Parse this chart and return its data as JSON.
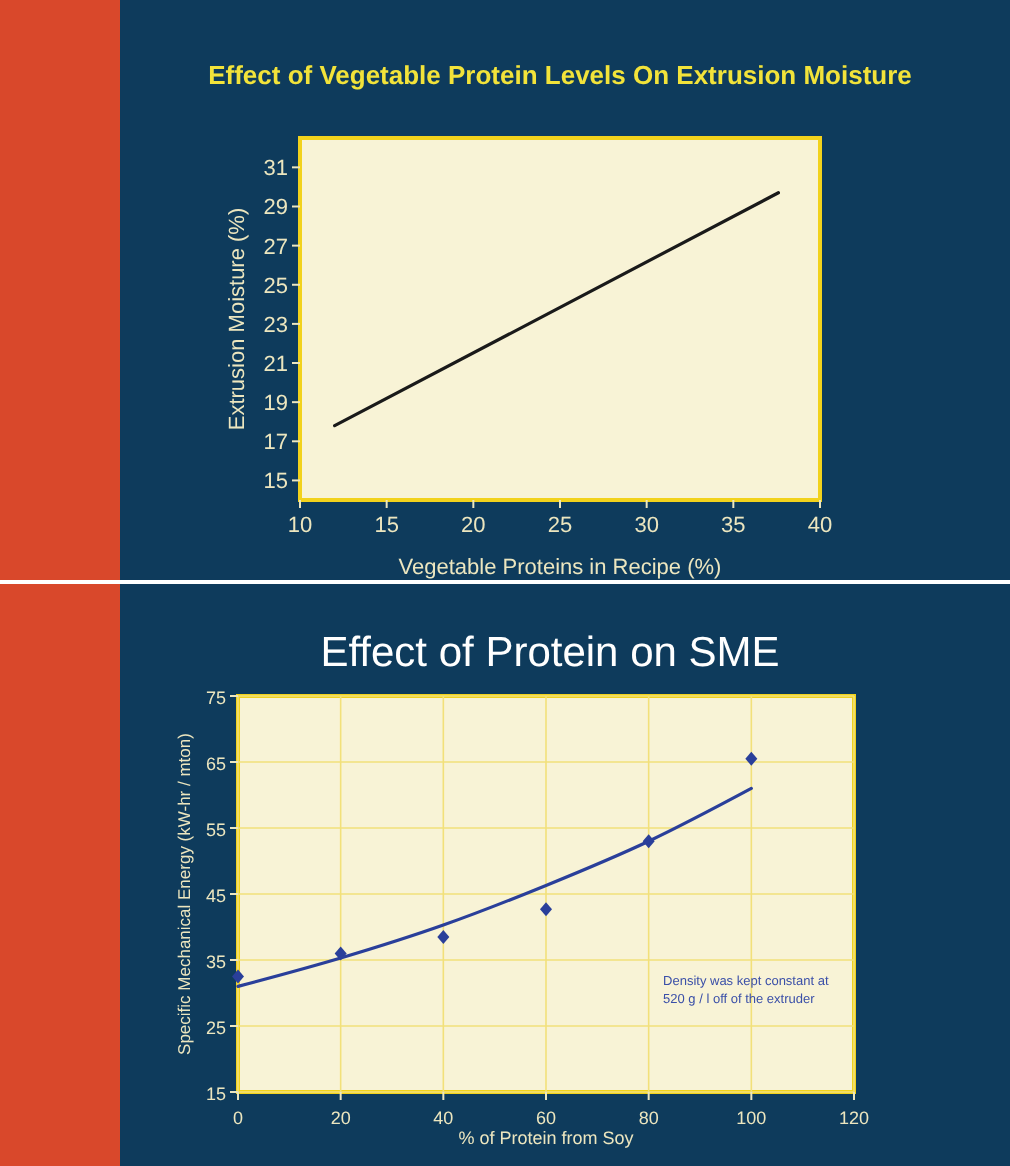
{
  "chart_data": [
    {
      "type": "line",
      "title": "Effect of Vegetable Protein Levels On Extrusion Moisture",
      "xlabel": "Vegetable Proteins in Recipe (%)",
      "ylabel": "Extrusion Moisture (%)",
      "xlim": [
        10,
        40
      ],
      "xticks": [
        10,
        15,
        20,
        25,
        30,
        35,
        40
      ],
      "ylim": [
        14,
        32.5
      ],
      "yticks": [
        15,
        17,
        19,
        21,
        23,
        25,
        27,
        29,
        31
      ],
      "grid": false,
      "marker": "none",
      "series": [
        {
          "x": [
            12,
            37.6
          ],
          "values": [
            17.8,
            29.7
          ],
          "color": "#1a1a1a"
        }
      ]
    },
    {
      "type": "scatter",
      "title": "Effect of Protein on SME",
      "xlabel": "% of Protein from Soy",
      "ylabel": "Specific Mechanical Energy  (kW-hr / mton)",
      "xlim": [
        0,
        120
      ],
      "xticks": [
        0,
        20,
        40,
        60,
        80,
        100,
        120
      ],
      "ylim": [
        15,
        75
      ],
      "yticks": [
        15,
        25,
        35,
        45,
        55,
        65,
        75
      ],
      "grid": true,
      "annotations": [
        "Density was kept constant at 520 g / l off of the extruder"
      ],
      "series": [
        {
          "marker": "diamond",
          "x": [
            0,
            20,
            40,
            60,
            80,
            100
          ],
          "values": [
            32.5,
            36,
            38.5,
            42.7,
            53,
            65.5
          ],
          "color": "#2a3f9a"
        },
        {
          "type": "line",
          "marker": "none",
          "x": [
            0,
            20,
            40,
            60,
            80,
            100
          ],
          "values": [
            31,
            35.3,
            40.3,
            46.3,
            53,
            61
          ],
          "color": "#2a3f9a"
        }
      ]
    }
  ]
}
